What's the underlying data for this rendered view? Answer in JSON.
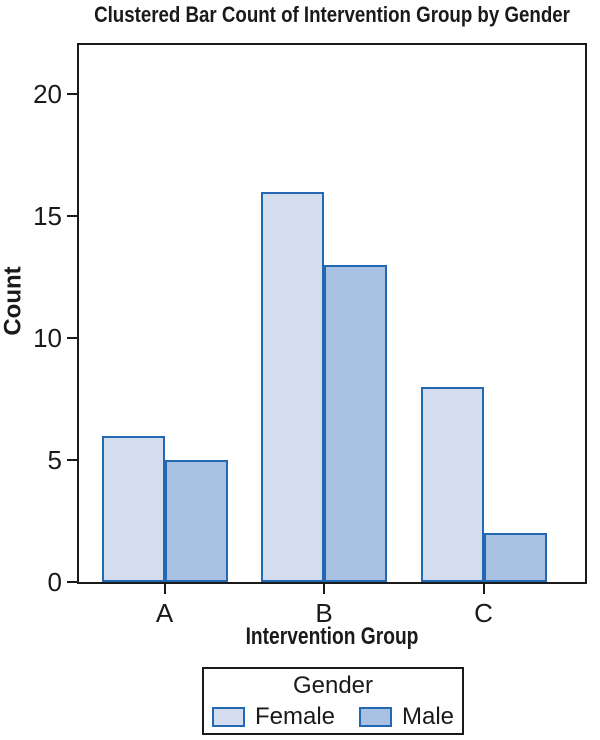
{
  "chart_data": {
    "type": "bar",
    "title": "Clustered Bar Count of Intervention Group by Gender",
    "xlabel": "Intervention Group",
    "ylabel": "Count",
    "categories": [
      "A",
      "B",
      "C"
    ],
    "series": [
      {
        "name": "Female",
        "values": [
          6,
          16,
          8
        ],
        "fill": "#d4ddee"
      },
      {
        "name": "Male",
        "values": [
          5,
          13,
          2
        ],
        "fill": "#a8c1e2"
      }
    ],
    "ylim": [
      0,
      22
    ],
    "yticks": [
      0,
      5,
      10,
      15,
      20
    ],
    "grid": false,
    "legend_title": "Gender",
    "legend_position": "bottom",
    "colors": {
      "bar_border": "#2268b2",
      "axis": "#1a1a1a",
      "background": "#ffffff"
    }
  }
}
